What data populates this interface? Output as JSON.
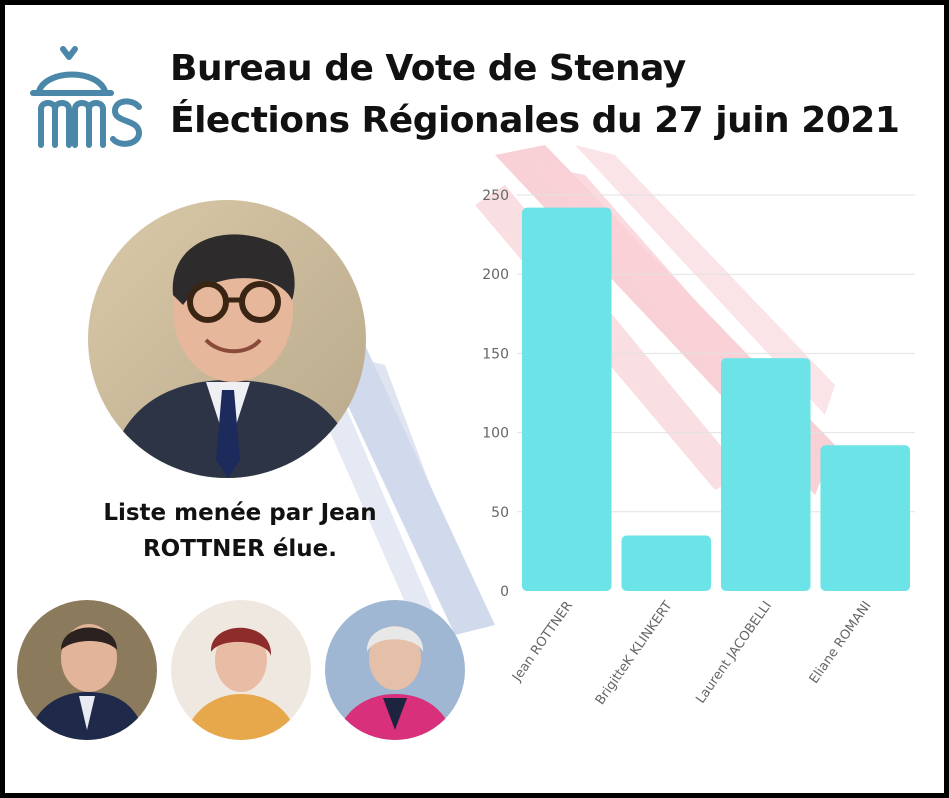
{
  "header": {
    "line1": "Bureau de Vote de Stenay",
    "line2": "Élections Régionales du 27 juin 2021"
  },
  "logo": {
    "text": "ms",
    "color": "#4a87a8"
  },
  "caption": {
    "line1": "Liste menée par Jean",
    "line2": "ROTTNER élue."
  },
  "colors": {
    "bar": "#6ce3e6",
    "grid": "#e2e2e2",
    "tick": "#666666",
    "brush_red": "#f7c9cf",
    "brush_blue": "#cdd6ea"
  },
  "chart_data": {
    "type": "bar",
    "categories": [
      "Jean ROTTNER",
      "BrigitteK KLINKERT",
      "Laurent JACOBELLI",
      "Eliane ROMANI"
    ],
    "values": [
      242,
      35,
      147,
      92
    ],
    "yticks": [
      0,
      50,
      100,
      150,
      200,
      250
    ],
    "ylim": [
      0,
      250
    ],
    "title": "",
    "xlabel": "",
    "ylabel": "",
    "grid": true
  }
}
